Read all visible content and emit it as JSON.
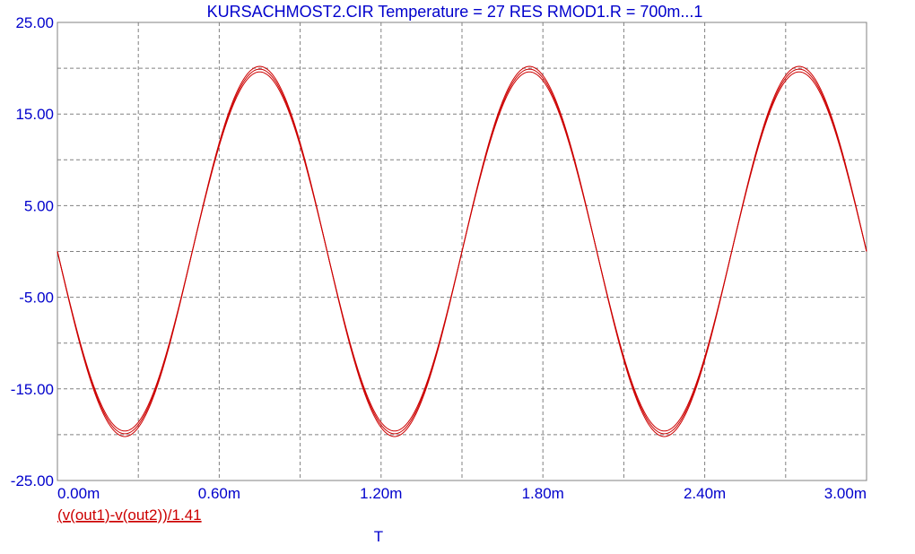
{
  "chart_data": {
    "type": "line",
    "title": "KURSACHMOST2.CIR Temperature = 27 RES RMOD1.R = 700m...1",
    "xlabel": "T",
    "ylabel": "",
    "xlim": [
      0,
      0.003
    ],
    "ylim": [
      -25,
      25
    ],
    "x_ticks": [
      "0.00m",
      "0.60m",
      "1.20m",
      "1.80m",
      "2.40m",
      "3.00m"
    ],
    "y_ticks": [
      "25.00",
      "15.00",
      "5.00",
      "-5.00",
      "-15.00",
      "-25.00"
    ],
    "x_tick_values": [
      0,
      0.0006,
      0.0012,
      0.0018,
      0.0024,
      0.003
    ],
    "y_tick_values": [
      25,
      15,
      5,
      -5,
      -15,
      -25
    ],
    "grid": true,
    "series_label": "(v(out1)-v(out2))/1.41",
    "line_color": "#cc0000",
    "text_color": "#0000cc",
    "grid_color": "#808080",
    "frequency_hz": 1000,
    "amplitudes": [
      19.6,
      19.9,
      20.2
    ],
    "sample_points": {
      "x": [
        0,
        0.00025,
        0.00075,
        0.00125,
        0.00175,
        0.00225,
        0.00275,
        0.003
      ],
      "y": [
        0,
        -19.9,
        19.9,
        -19.9,
        19.9,
        -19.9,
        19.9,
        0
      ]
    }
  }
}
